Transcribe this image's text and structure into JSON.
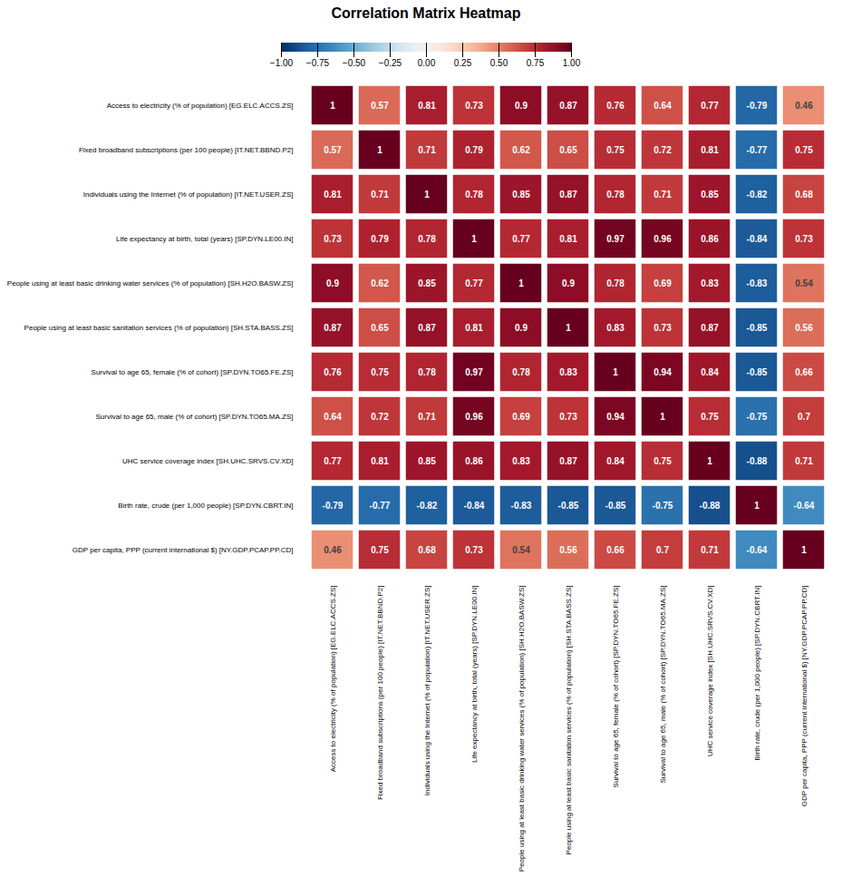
{
  "chart_data": {
    "type": "heatmap",
    "title": "Correlation Matrix Heatmap",
    "categories": [
      "Access to electricity (% of population) [EG.ELC.ACCS.ZS]",
      "Fixed broadband subscriptions (per 100 people) [IT.NET.BBND.P2]",
      "Individuals using the Internet (% of population) [IT.NET.USER.ZS]",
      "Life expectancy at birth, total (years) [SP.DYN.LE00.IN]",
      "People using at least basic drinking water services (% of population) [SH.H2O.BASW.ZS]",
      "People using at least basic sanitation services (% of population) [SH.STA.BASS.ZS]",
      "Survival to age 65, female (% of cohort) [SP.DYN.TO65.FE.ZS]",
      "Survival to age 65, male (% of cohort) [SP.DYN.TO65.MA.ZS]",
      "UHC service coverage index [SH.UHC.SRVS.CV.XD]",
      "Birth rate, crude (per 1,000 people) [SP.DYN.CBRT.IN]",
      "GDP per capita, PPP (current international $) [NY.GDP.PCAP.PP.CD]"
    ],
    "matrix": [
      [
        1.0,
        0.57,
        0.81,
        0.73,
        0.9,
        0.87,
        0.76,
        0.64,
        0.77,
        -0.79,
        0.46
      ],
      [
        0.57,
        1.0,
        0.71,
        0.79,
        0.62,
        0.65,
        0.75,
        0.72,
        0.81,
        -0.77,
        0.75
      ],
      [
        0.81,
        0.71,
        1.0,
        0.78,
        0.85,
        0.87,
        0.78,
        0.71,
        0.85,
        -0.82,
        0.68
      ],
      [
        0.73,
        0.79,
        0.78,
        1.0,
        0.77,
        0.81,
        0.97,
        0.96,
        0.86,
        -0.84,
        0.73
      ],
      [
        0.9,
        0.62,
        0.85,
        0.77,
        1.0,
        0.9,
        0.78,
        0.69,
        0.83,
        -0.83,
        0.54
      ],
      [
        0.87,
        0.65,
        0.87,
        0.81,
        0.9,
        1.0,
        0.83,
        0.73,
        0.87,
        -0.85,
        0.56
      ],
      [
        0.76,
        0.75,
        0.78,
        0.97,
        0.78,
        0.83,
        1.0,
        0.94,
        0.84,
        -0.85,
        0.66
      ],
      [
        0.64,
        0.72,
        0.71,
        0.96,
        0.69,
        0.73,
        0.94,
        1.0,
        0.75,
        -0.75,
        0.7
      ],
      [
        0.77,
        0.81,
        0.85,
        0.86,
        0.83,
        0.87,
        0.84,
        0.75,
        1.0,
        -0.88,
        0.71
      ],
      [
        -0.79,
        -0.77,
        -0.82,
        -0.84,
        -0.83,
        -0.85,
        -0.85,
        -0.75,
        -0.88,
        1.0,
        -0.64
      ],
      [
        0.46,
        0.75,
        0.68,
        0.73,
        0.54,
        0.56,
        0.66,
        0.7,
        0.71,
        -0.64,
        1.0
      ]
    ],
    "color": "RdBu_r",
    "colorbar_lim": [
      -1.0,
      1.0
    ],
    "colorbar_ticks": [
      {
        "value": 1.0,
        "label": "1.00"
      },
      0.75,
      {
        "value": 0.5,
        "label": "0.50"
      },
      0.25,
      {
        "value": 0.0,
        "label": "0.00"
      },
      {
        "value": -0.25,
        "label": "−0.25"
      },
      {
        "value": -0.5,
        "label": "−0.50"
      },
      {
        "value": -0.75,
        "label": "−0.75"
      },
      {
        "value": -1.0,
        "label": "−1.00"
      }
    ],
    "data_labels": true
  }
}
